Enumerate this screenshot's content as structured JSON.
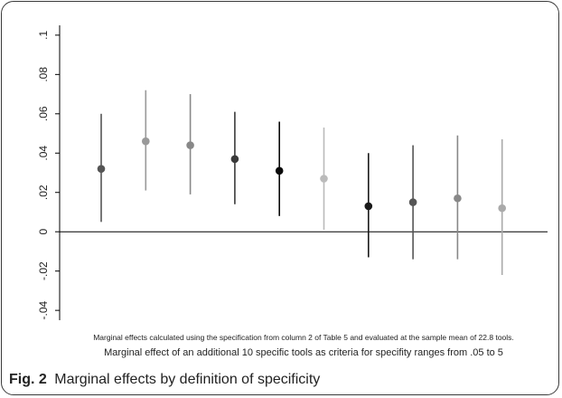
{
  "chart_data": {
    "type": "scatter",
    "subtype": "point-with-confidence-interval",
    "note": "Marginal effects calculated using the specification from column 2 of Table 5 and evaluated at the sample mean of 22.8 tools.",
    "xlabel": "Marginal effect of an additional 10 specific tools as criteria for specifity ranges from .05 to 5",
    "ylabel": "",
    "ylim": [
      -0.045,
      0.105
    ],
    "yticks": [
      {
        "value": -0.04,
        "label": "-.04"
      },
      {
        "value": -0.02,
        "label": "-.02"
      },
      {
        "value": 0,
        "label": "0"
      },
      {
        "value": 0.02,
        "label": ".02"
      },
      {
        "value": 0.04,
        "label": ".04"
      },
      {
        "value": 0.06,
        "label": ".06"
      },
      {
        "value": 0.08,
        "label": ".08"
      },
      {
        "value": 0.1,
        "label": ".1"
      }
    ],
    "grid": false,
    "reference_line": 0,
    "points": [
      {
        "estimate": 0.032,
        "ci_low": 0.005,
        "ci_high": 0.06,
        "point_color": "#555555",
        "line_color": "#555555"
      },
      {
        "estimate": 0.046,
        "ci_low": 0.021,
        "ci_high": 0.072,
        "point_color": "#999999",
        "line_color": "#999999"
      },
      {
        "estimate": 0.044,
        "ci_low": 0.019,
        "ci_high": 0.07,
        "point_color": "#888888",
        "line_color": "#888888"
      },
      {
        "estimate": 0.037,
        "ci_low": 0.014,
        "ci_high": 0.061,
        "point_color": "#3a3a3a",
        "line_color": "#3a3a3a"
      },
      {
        "estimate": 0.031,
        "ci_low": 0.008,
        "ci_high": 0.056,
        "point_color": "#0a0a0a",
        "line_color": "#0a0a0a"
      },
      {
        "estimate": 0.027,
        "ci_low": 0.001,
        "ci_high": 0.053,
        "point_color": "#bbbbbb",
        "line_color": "#bbbbbb"
      },
      {
        "estimate": 0.013,
        "ci_low": -0.013,
        "ci_high": 0.04,
        "point_color": "#1a1a1a",
        "line_color": "#1a1a1a"
      },
      {
        "estimate": 0.015,
        "ci_low": -0.014,
        "ci_high": 0.044,
        "point_color": "#555555",
        "line_color": "#555555"
      },
      {
        "estimate": 0.017,
        "ci_low": -0.014,
        "ci_high": 0.049,
        "point_color": "#888888",
        "line_color": "#888888"
      },
      {
        "estimate": 0.012,
        "ci_low": -0.022,
        "ci_high": 0.047,
        "point_color": "#aaaaaa",
        "line_color": "#aaaaaa"
      }
    ]
  },
  "figure": {
    "label": "Fig. 2",
    "caption": "Marginal effects by definition of specificity"
  },
  "colors": {
    "frame": "#3a3a3a",
    "axis": "#000000",
    "text": "#222222"
  }
}
